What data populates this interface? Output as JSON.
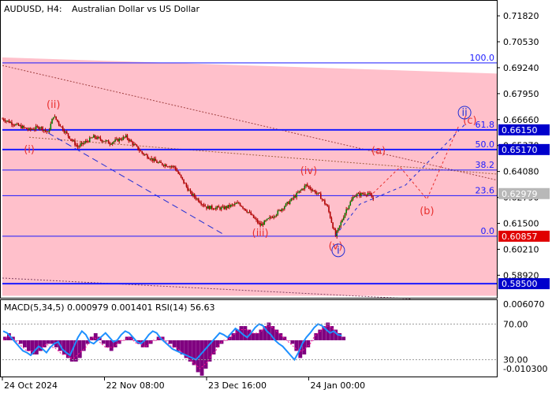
{
  "header": {
    "symbol_timeframe": "AUDUSD, H4:",
    "description": "Australian Dollar vs US Dollar"
  },
  "colors": {
    "background": "#ffffff",
    "zone_fill": "#ffc0cb",
    "candle": "#b00000",
    "price_line": "#008000",
    "level_line": "#0000cc",
    "wave_red": "#e8312f",
    "wave_blue": "#1e2dd6",
    "current_price_box": "#b8b8b8",
    "support_price_box": "#e00000",
    "level_price_box": "#0000cc",
    "macd_hist": "#800080",
    "macd_signal": "#1e90ff"
  },
  "chart_data": {
    "type": "line",
    "title": "AUDUSD, H4: Australian Dollar vs US Dollar",
    "ylim": [
      0.578,
      0.7245
    ],
    "y_ticks": [
      "0.71820",
      "0.70530",
      "0.69240",
      "0.67950",
      "0.66660",
      "0.65370",
      "0.64080",
      "0.62790",
      "0.61500",
      "0.60210",
      "0.58920"
    ],
    "y_tick_values": [
      0.7182,
      0.7053,
      0.6924,
      0.6795,
      0.6666,
      0.6537,
      0.6408,
      0.6279,
      0.615,
      0.6021,
      0.5892
    ],
    "x_ticks": [
      "24 Oct 2024",
      "22 Nov 08:00",
      "23 Dec 16:00",
      "24 Jan 00:00"
    ],
    "x_tick_bars": [
      0,
      38,
      76,
      114
    ],
    "bars_total": 184,
    "price_series": {
      "type": "candlestick",
      "points": [
        {
          "bar": 0,
          "value": 0.667
        },
        {
          "bar": 5,
          "value": 0.664
        },
        {
          "bar": 10,
          "value": 0.6615
        },
        {
          "bar": 14,
          "value": 0.663
        },
        {
          "bar": 17,
          "value": 0.66
        },
        {
          "bar": 19,
          "value": 0.6685
        },
        {
          "bar": 23,
          "value": 0.661
        },
        {
          "bar": 28,
          "value": 0.653
        },
        {
          "bar": 34,
          "value": 0.658
        },
        {
          "bar": 40,
          "value": 0.655
        },
        {
          "bar": 46,
          "value": 0.658
        },
        {
          "bar": 52,
          "value": 0.65
        },
        {
          "bar": 58,
          "value": 0.645
        },
        {
          "bar": 64,
          "value": 0.643
        },
        {
          "bar": 70,
          "value": 0.63
        },
        {
          "bar": 76,
          "value": 0.623
        },
        {
          "bar": 82,
          "value": 0.6225
        },
        {
          "bar": 88,
          "value": 0.625
        },
        {
          "bar": 92,
          "value": 0.62
        },
        {
          "bar": 96,
          "value": 0.614
        },
        {
          "bar": 102,
          "value": 0.62
        },
        {
          "bar": 107,
          "value": 0.626
        },
        {
          "bar": 113,
          "value": 0.634
        },
        {
          "bar": 118,
          "value": 0.629
        },
        {
          "bar": 121,
          "value": 0.623
        },
        {
          "bar": 124,
          "value": 0.6086
        },
        {
          "bar": 128,
          "value": 0.622
        },
        {
          "bar": 131,
          "value": 0.629
        },
        {
          "bar": 136,
          "value": 0.63
        },
        {
          "bar": 138,
          "value": 0.627
        }
      ]
    },
    "fibonacci": [
      {
        "label": "100.0",
        "value": 0.6948
      },
      {
        "label": "61.8",
        "value": 0.6615
      },
      {
        "label": "50.0",
        "value": 0.6517
      },
      {
        "label": "38.2",
        "value": 0.6415
      },
      {
        "label": "23.6",
        "value": 0.6288
      },
      {
        "label": "0.0",
        "value": 0.6086
      }
    ],
    "levels": [
      {
        "value": 0.6615,
        "label": "0.66150"
      },
      {
        "value": 0.6517,
        "label": "0.65170"
      },
      {
        "value": 0.6086,
        "label": "0.60857"
      },
      {
        "value": 0.585,
        "label": "0.58500"
      }
    ],
    "current_price": {
      "value": 0.6298,
      "label": "0.62979"
    },
    "waves": [
      {
        "label": "(i)",
        "bar": 10,
        "value": 0.65,
        "color": "red"
      },
      {
        "label": "(ii)",
        "bar": 19,
        "value": 0.6725,
        "color": "red"
      },
      {
        "label": "(iii)",
        "bar": 96,
        "value": 0.6085,
        "color": "red"
      },
      {
        "label": "(iv)",
        "bar": 114,
        "value": 0.6395,
        "color": "red"
      },
      {
        "label": "(v)",
        "bar": 124,
        "value": 0.602,
        "color": "red"
      },
      {
        "label": "(a)",
        "bar": 140,
        "value": 0.6495,
        "color": "red"
      },
      {
        "label": "(b)",
        "bar": 158,
        "value": 0.6195,
        "color": "red"
      },
      {
        "label": "(c)",
        "bar": 174,
        "value": 0.6645,
        "color": "red"
      },
      {
        "label": "i",
        "bar": 125,
        "value": 0.6,
        "color": "blue",
        "circled": true
      },
      {
        "label": "ii",
        "bar": 172,
        "value": 0.6685,
        "color": "blue",
        "circled": true
      }
    ],
    "forecast_red": [
      {
        "bar": 138,
        "value": 0.63
      },
      {
        "bar": 148,
        "value": 0.643
      },
      {
        "bar": 158,
        "value": 0.627
      },
      {
        "bar": 170,
        "value": 0.664
      }
    ],
    "forecast_blue": [
      {
        "bar": 124,
        "value": 0.609
      },
      {
        "bar": 133,
        "value": 0.6245
      },
      {
        "bar": 150,
        "value": 0.634
      },
      {
        "bar": 172,
        "value": 0.664
      }
    ],
    "wave_i_trendline": [
      {
        "bar": 17,
        "value": 0.66
      },
      {
        "bar": 83,
        "value": 0.609
      }
    ],
    "upper_trendline": [
      {
        "bar": 0,
        "value": 0.6935
      },
      {
        "bar": 184,
        "value": 0.6365
      }
    ],
    "lower_trendline": [
      {
        "bar": 0,
        "value": 0.5878
      },
      {
        "bar": 152,
        "value": 0.5775
      }
    ],
    "zone": {
      "top_start": 0.6975,
      "top_end": 0.6895,
      "bottom": 0.579
    }
  },
  "indicator": {
    "label": "MACD(5,34,5) 0.000979 0.001401 RSI(14) 56.63",
    "ticks": [
      "0.006070",
      "70.00",
      "30.00",
      "-0.010300"
    ],
    "macd_hist": [
      0.001,
      0.002,
      0.001,
      0.0,
      -0.001,
      -0.002,
      -0.003,
      -0.004,
      -0.004,
      -0.003,
      -0.002,
      -0.001,
      -0.001,
      -0.002,
      -0.003,
      -0.004,
      -0.005,
      -0.006,
      -0.006,
      -0.005,
      -0.003,
      -0.001,
      0.001,
      0.002,
      0.001,
      -0.001,
      -0.002,
      -0.003,
      -0.002,
      -0.001,
      0.0,
      0.001,
      0.001,
      0.0,
      -0.001,
      -0.002,
      -0.002,
      -0.001,
      0.0,
      0.001,
      0.001,
      0.0,
      -0.001,
      -0.002,
      -0.003,
      -0.004,
      -0.005,
      -0.006,
      -0.007,
      -0.009,
      -0.01,
      -0.008,
      -0.006,
      -0.004,
      -0.002,
      -0.001,
      0.0,
      0.001,
      0.002,
      0.003,
      0.004,
      0.004,
      0.003,
      0.002,
      0.002,
      0.003,
      0.004,
      0.005,
      0.004,
      0.003,
      0.002,
      0.001,
      0.0,
      -0.001,
      -0.003,
      -0.005,
      -0.004,
      -0.002,
      0.0,
      0.002,
      0.003,
      0.004,
      0.005,
      0.004,
      0.003,
      0.002,
      0.001
    ],
    "macd_signal": [
      0.0,
      0.001,
      0.001,
      0.0,
      -0.001,
      -0.002,
      -0.003,
      -0.003,
      -0.003,
      -0.002,
      -0.002,
      -0.001,
      -0.002,
      -0.002,
      -0.003,
      -0.004,
      -0.004,
      -0.005,
      -0.005,
      -0.004,
      -0.003,
      -0.002,
      0.0,
      0.001,
      0.0,
      -0.001,
      -0.002,
      -0.002,
      -0.002,
      -0.001,
      0.0,
      0.0,
      0.001,
      0.0,
      -0.001,
      -0.001,
      -0.002,
      -0.001,
      0.0,
      0.0,
      0.001,
      0.0,
      -0.001,
      -0.002,
      -0.002,
      -0.003,
      -0.004,
      -0.005,
      -0.006,
      -0.007,
      -0.008,
      -0.007,
      -0.006,
      -0.004,
      -0.003,
      -0.001,
      0.0,
      0.0,
      0.001,
      0.002,
      0.003,
      0.003,
      0.003,
      0.002,
      0.002,
      0.002,
      0.003,
      0.004,
      0.004,
      0.003,
      0.002,
      0.001,
      0.0,
      -0.001,
      -0.002,
      -0.003,
      -0.003,
      -0.002,
      -0.001,
      0.001,
      0.002,
      0.003,
      0.004,
      0.004,
      0.003,
      0.002,
      0.001
    ],
    "rsi": [
      62,
      60,
      55,
      50,
      45,
      40,
      38,
      35,
      40,
      45,
      42,
      38,
      44,
      48,
      50,
      42,
      38,
      35,
      45,
      55,
      62,
      58,
      50,
      48,
      52,
      56,
      60,
      55,
      50,
      52,
      58,
      62,
      60,
      55,
      50,
      48,
      52,
      58,
      62,
      60,
      54,
      50,
      46,
      42,
      40,
      38,
      36,
      34,
      32,
      30,
      35,
      40,
      45,
      50,
      55,
      60,
      58,
      55,
      60,
      65,
      62,
      58,
      55,
      60,
      66,
      70,
      68,
      62,
      58,
      52,
      48,
      45,
      40,
      35,
      30,
      38,
      48,
      55,
      60,
      66,
      70,
      68,
      64,
      60,
      62,
      58,
      57
    ]
  }
}
